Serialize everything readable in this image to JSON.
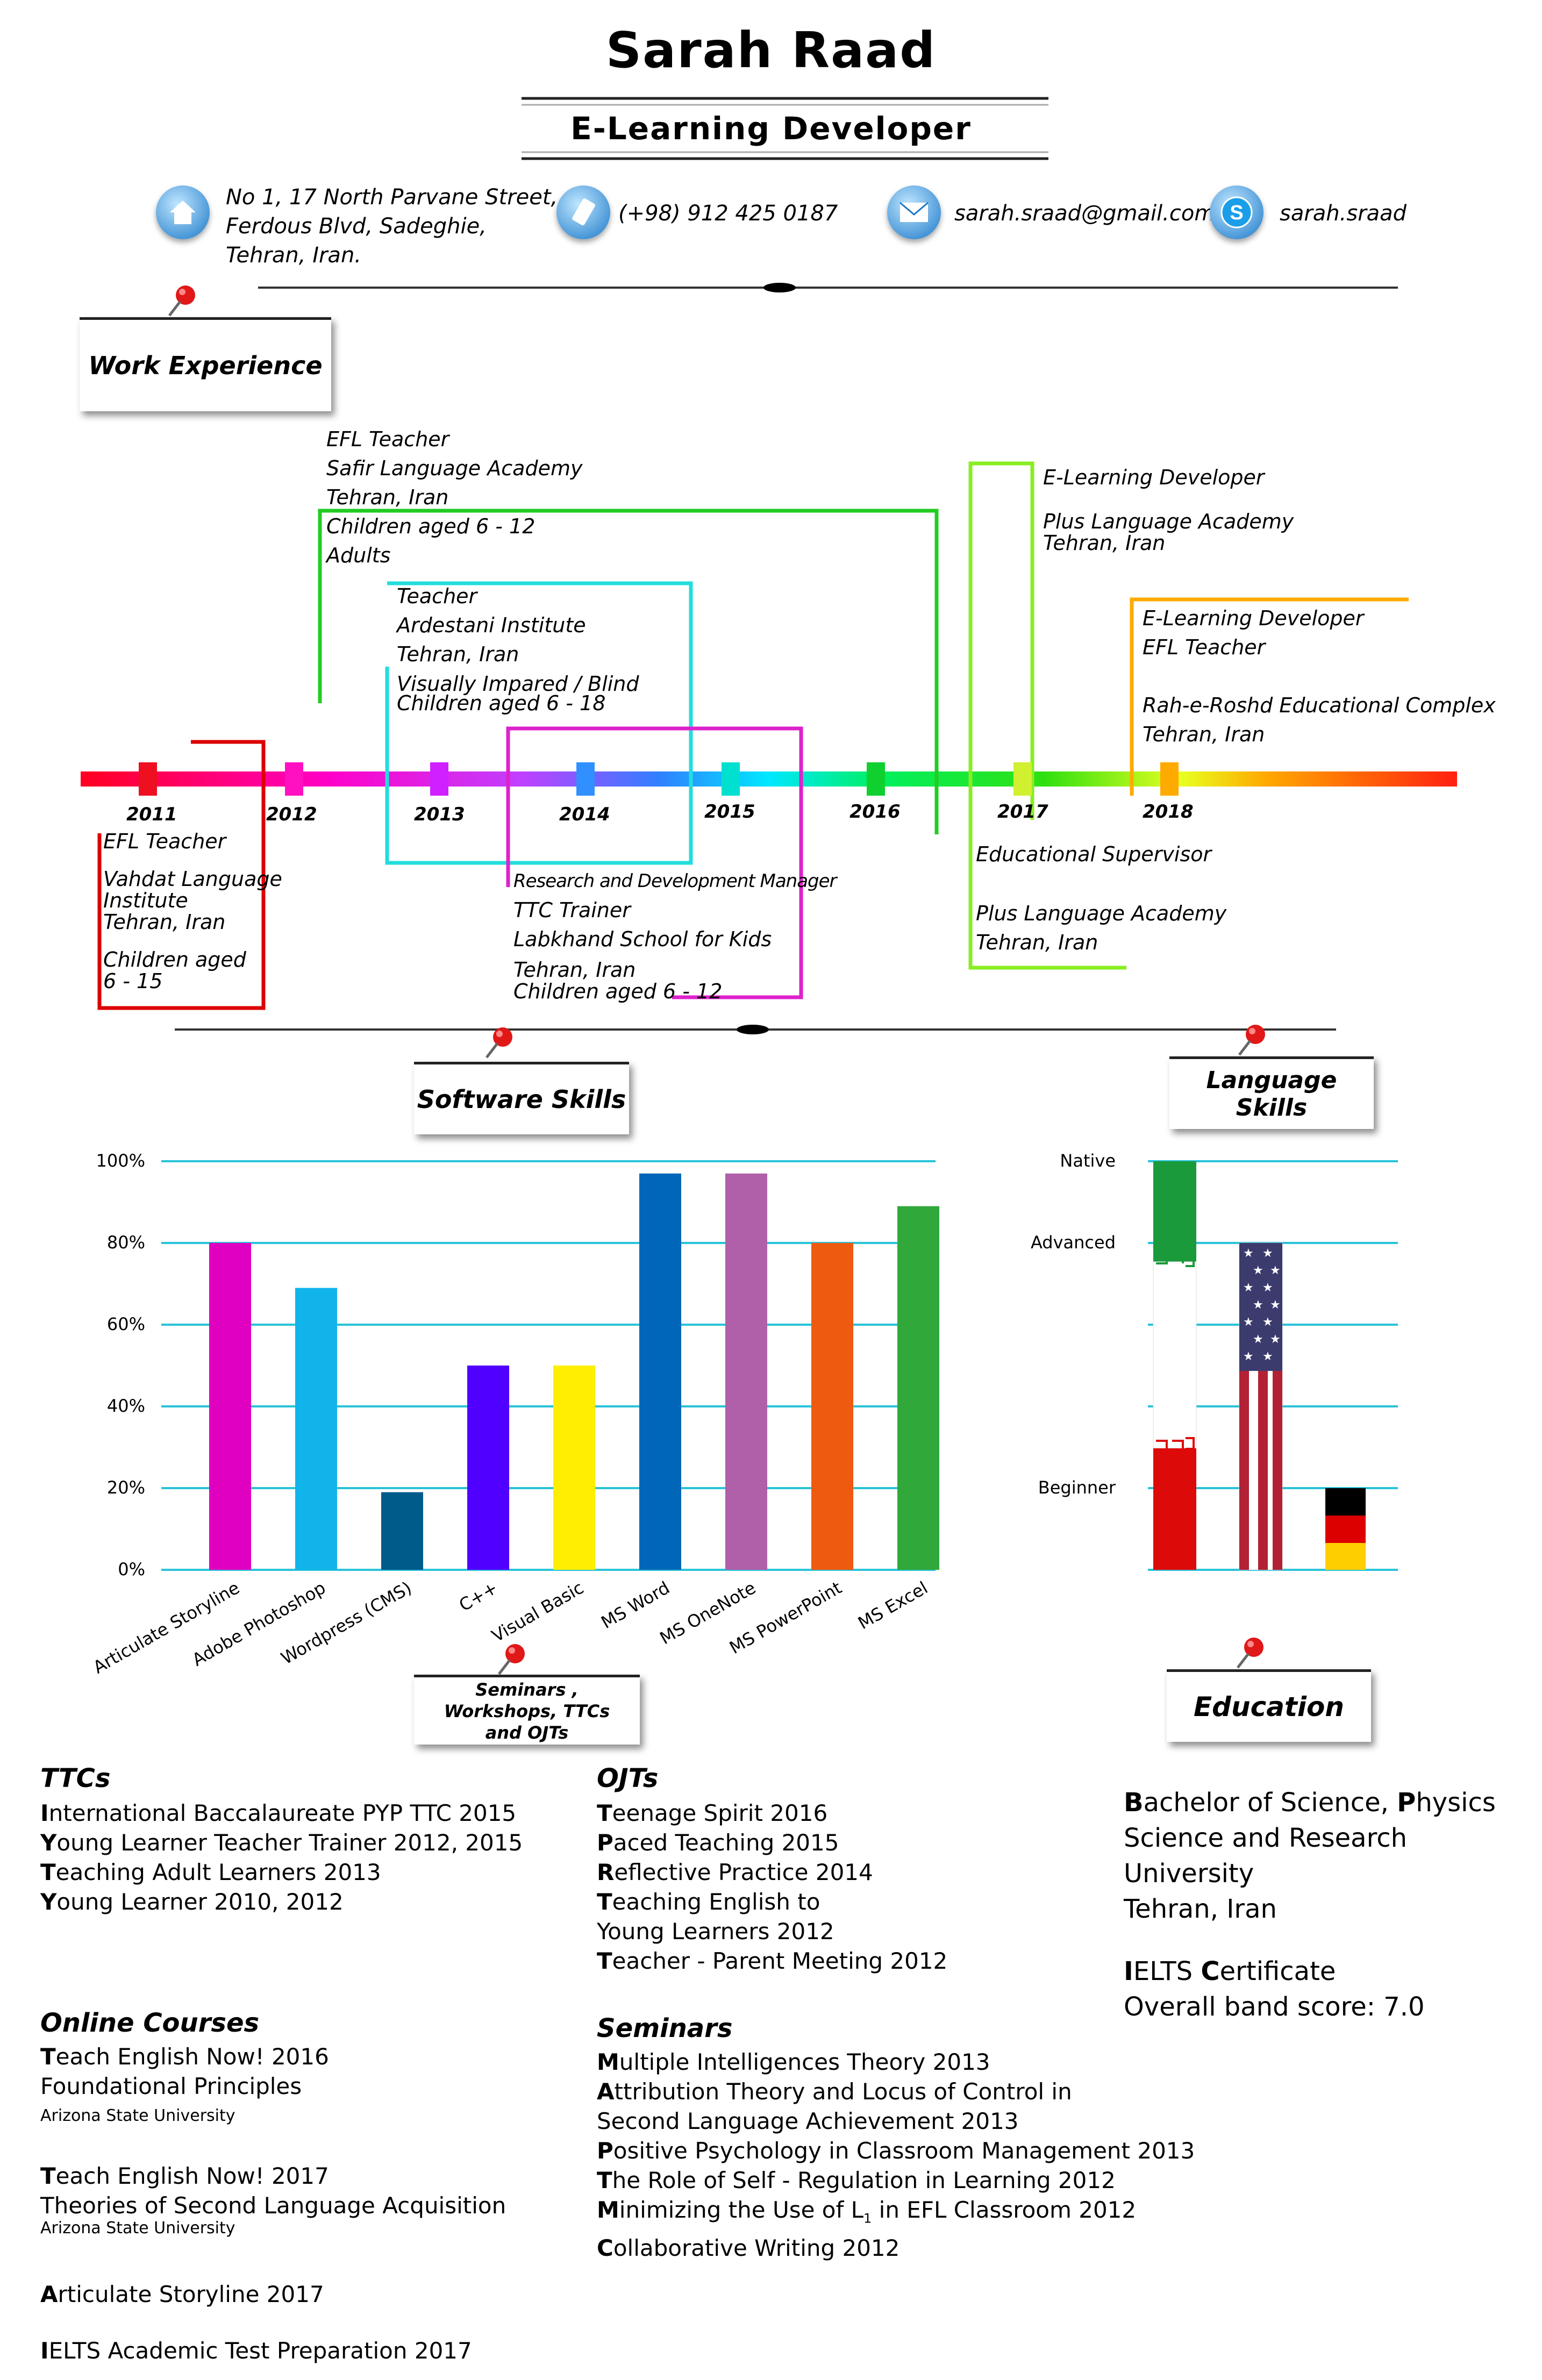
{
  "header": {
    "name": "Sarah Raad",
    "title": "E-Learning Developer",
    "address": [
      "No 1, 17 North Parvane Street,",
      "Ferdous Blvd, Sadeghie,",
      "Tehran, Iran."
    ],
    "phone": "(+98) 912 425 0187",
    "email": "sarah.sraad@gmail.com",
    "skype": "sarah.sraad"
  },
  "icons": {
    "home": "home-icon",
    "phone": "phone-icon",
    "email": "envelope-icon",
    "skype": "skype-icon",
    "pin": "pushpin-icon"
  },
  "sections": {
    "work": "Work Experience",
    "software": "Software Skills",
    "language": "Language Skills",
    "seminars": "Seminars , Workshops, TTCs and OJTs",
    "education": "Education"
  },
  "timeline": {
    "years": [
      "2011",
      "2012",
      "2013",
      "2014",
      "2015",
      "2016",
      "2017",
      "2018"
    ],
    "jobs": [
      {
        "lines": [
          "EFL Teacher",
          "Safir Language Academy",
          "Tehran, Iran",
          "Children aged 6 - 12",
          "Adults"
        ],
        "color": "#22cc22"
      },
      {
        "lines": [
          "Teacher",
          "Ardestani Institute",
          "Tehran, Iran",
          "Visually Impared / Blind",
          "Children aged 6 - 18"
        ],
        "color": "#22dddd"
      },
      {
        "lines": [
          "E-Learning Developer",
          "Plus Language Academy",
          "Tehran, Iran"
        ],
        "color": "#88ee22"
      },
      {
        "lines": [
          "E-Learning Developer",
          "EFL Teacher",
          "Rah-e-Roshd Educational Complex",
          "Tehran, Iran"
        ],
        "color": "#ffaa00"
      },
      {
        "lines": [
          "EFL Teacher",
          "Vahdat Language",
          "Institute",
          "Tehran, Iran",
          "Children aged",
          "6 - 15"
        ],
        "color": "#dd0000"
      },
      {
        "lines": [
          "Research and Development Manager",
          "TTC Trainer",
          "Labkhand School for Kids",
          "Tehran, Iran",
          "Children aged 6 - 12"
        ],
        "color": "#dd22cc"
      },
      {
        "lines": [
          "Educational Supervisor",
          "Plus Language Academy",
          "Tehran, Iran"
        ],
        "color": "#88ee22"
      }
    ]
  },
  "chart_data": [
    {
      "type": "bar",
      "title": "Software Skills",
      "categories": [
        "Articulate Storyline",
        "Adobe Photoshop",
        "Wordpress (CMS)",
        "C++",
        "Visual Basic",
        "MS  Word",
        "MS OneNote",
        "MS PowerPoint",
        "MS Excel"
      ],
      "values": [
        80,
        69,
        19,
        50,
        50,
        97,
        97,
        80,
        89
      ],
      "colors": [
        "#e000c0",
        "#10b4ea",
        "#005a8a",
        "#5000ff",
        "#ffee00",
        "#0066b8",
        "#b060a8",
        "#ee5a10",
        "#30a83a"
      ],
      "yticks": [
        "0%",
        "20%",
        "40%",
        "60%",
        "80%",
        "100%"
      ],
      "ylim": [
        0,
        100
      ],
      "grid": true
    },
    {
      "type": "bar",
      "title": "Language Skills",
      "categories": [
        "Persian",
        "English",
        "German"
      ],
      "values": [
        100,
        80,
        20
      ],
      "ylevels": [
        "Native",
        "Advanced",
        "Beginner"
      ],
      "ylevel_values": [
        100,
        80,
        20
      ],
      "flags": [
        "iran-flag",
        "usa-flag",
        "germany-flag"
      ],
      "grid": true
    }
  ],
  "ttcs": {
    "heading": "TTCs",
    "items": [
      {
        "first": "I",
        "rest": "nternational Baccalaureate PYP  TTC 2015"
      },
      {
        "first": "Y",
        "rest": "oung Learner Teacher Trainer 2012, 2015"
      },
      {
        "first": "T",
        "rest": "eaching Adult Learners 2013"
      },
      {
        "first": "Y",
        "rest": "oung Learner 2010, 2012"
      }
    ]
  },
  "online": {
    "heading": "Online Courses",
    "c1": {
      "first": "T",
      "rest": "each English Now! 2016",
      "sub": "Foundational Principles",
      "uni": "Arizona State University"
    },
    "c2": {
      "first": "T",
      "rest": "each English Now! 2017",
      "sub": "Theories of Second Language Acquisition",
      "uni": "Arizona State University"
    },
    "c3": {
      "first": "A",
      "rest": "rticulate Storyline  2017"
    },
    "c4": {
      "first": "I",
      "rest": "ELTS Academic Test Preparation 2017"
    }
  },
  "ojts": {
    "heading": "OJTs",
    "items": [
      {
        "first": "T",
        "rest": "eenage Spirit 2016"
      },
      {
        "first": "P",
        "rest": "aced Teaching 2015"
      },
      {
        "first": "R",
        "rest": "eflective Practice 2014"
      },
      {
        "first": "T",
        "rest": "eaching English to"
      },
      {
        "first": "",
        "rest": "Young Learners 2012"
      },
      {
        "first": "T",
        "rest": "eacher - Parent Meeting 2012"
      }
    ]
  },
  "seminars": {
    "heading": "Seminars",
    "items": [
      {
        "first": "M",
        "rest": "ultiple Intelligences Theory   2013"
      },
      {
        "first": "A",
        "rest": "ttribution Theory and Locus of Control in"
      },
      {
        "first": "",
        "rest": "Second Language Achievement 2013"
      },
      {
        "first": "P",
        "rest": "ositive Psychology in Classroom Management 2013"
      },
      {
        "first": "T",
        "rest": "he Role of Self - Regulation in Learning  2012"
      },
      {
        "first": "M",
        "rest": "inimizing the Use of L",
        "sub": "1",
        "after": " in EFL Classroom  2012"
      },
      {
        "first": "C",
        "rest": "ollaborative Writing 2012"
      }
    ]
  },
  "education": {
    "degree_b": "B",
    "degree_a": "achelor of Science, ",
    "degree_p": "P",
    "degree_c": "hysics",
    "uni": "Science and Research University",
    "city": "Tehran, Iran",
    "ielts_i": "I",
    "ielts_a": "ELTS ",
    "ielts_c": "C",
    "ielts_d": "ertificate",
    "band": "Overall band score: 7.0"
  }
}
